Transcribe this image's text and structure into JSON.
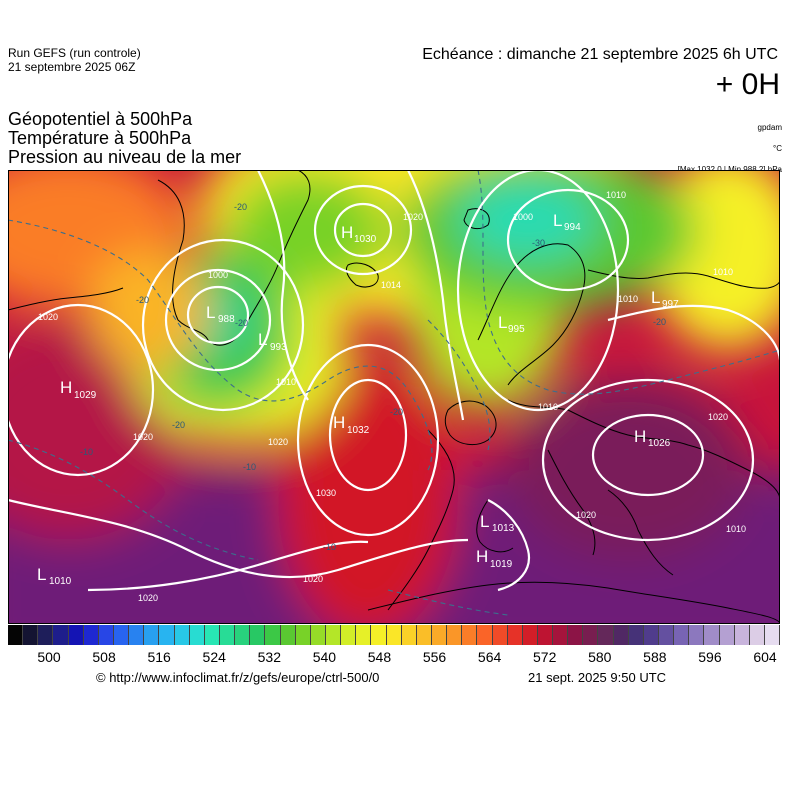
{
  "header": {
    "run_line1": "Run GEFS (run controle)",
    "run_line2": "21 septembre 2025 06Z",
    "validity": "Echéance : dimanche 21 septembre 2025 6h UTC",
    "lead_time": "+ 0H"
  },
  "parameters": {
    "line1": "Géopotentiel à 500hPa",
    "line2": "Température à 500hPa",
    "line3": "Pression au niveau de la mer"
  },
  "units": {
    "geopotential": "gpdam",
    "temperature": "°C",
    "pressure": "[Max 1032.0 | Min 988.2] hPa"
  },
  "map": {
    "pressure_centers": [
      {
        "type": "H",
        "value": "1030"
      },
      {
        "type": "L",
        "value": "994"
      },
      {
        "type": "L",
        "value": "988"
      },
      {
        "type": "L",
        "value": "993"
      },
      {
        "type": "L",
        "value": "997"
      },
      {
        "type": "L",
        "value": "995"
      },
      {
        "type": "H",
        "value": "1029"
      },
      {
        "type": "H",
        "value": "1032"
      },
      {
        "type": "H",
        "value": "1026"
      },
      {
        "type": "L",
        "value": "1013"
      },
      {
        "type": "H",
        "value": "1019"
      },
      {
        "type": "L",
        "value": "1010"
      }
    ],
    "isobar_labels": [
      "1020",
      "1000",
      "1014",
      "1020",
      "1010",
      "1000",
      "1010",
      "1010",
      "1020",
      "1010",
      "1020",
      "1020",
      "1030",
      "1020",
      "1010",
      "1020",
      "1010",
      "1020"
    ],
    "temperature_labels": [
      "-20",
      "-20",
      "-20",
      "-30",
      "-20",
      "-20",
      "-10",
      "-10",
      "-20",
      "-10"
    ]
  },
  "scale": {
    "colors": [
      "#050505",
      "#141432",
      "#1e1e5a",
      "#1e1e8c",
      "#1414b4",
      "#1e28d2",
      "#2846e6",
      "#2864f0",
      "#2882f0",
      "#28a0f0",
      "#28b4f0",
      "#28c8e6",
      "#28dcd2",
      "#28e6b4",
      "#28dc96",
      "#28d27d",
      "#28c864",
      "#3cc846",
      "#5ac832",
      "#78d228",
      "#96dc28",
      "#b4e628",
      "#d2ee28",
      "#e6f028",
      "#f5f028",
      "#fae628",
      "#fad228",
      "#fabe28",
      "#faaa28",
      "#fa9628",
      "#fa7d28",
      "#fa6428",
      "#f04b28",
      "#e63228",
      "#d21e28",
      "#be1432",
      "#a5143c",
      "#8c1446",
      "#781e50",
      "#64285a",
      "#502864",
      "#463278",
      "#503c8c",
      "#6450a0",
      "#7864b4",
      "#8c78be",
      "#a08cc8",
      "#b4a0d2",
      "#c8b4dc",
      "#dccde6",
      "#e6dcf0"
    ],
    "ticks": [
      "500",
      "508",
      "516",
      "524",
      "532",
      "540",
      "548",
      "556",
      "564",
      "572",
      "580",
      "588",
      "596",
      "604"
    ]
  },
  "footer": {
    "source": "© http://www.infoclimat.fr/z/gefs/europe/ctrl-500/0",
    "timestamp": "21 sept. 2025  9:50 UTC"
  }
}
